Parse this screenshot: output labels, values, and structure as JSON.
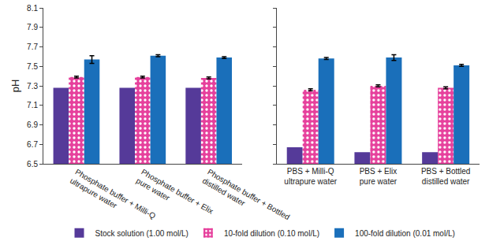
{
  "chart_data": [
    {
      "type": "bar",
      "y_label": "pH",
      "categories": [
        "Phosphate buffer + Milli-Q ultrapure water",
        "Phosphate buffer + Elix pure water",
        "Phosphate buffer + Bottled distilled water"
      ],
      "series": [
        {
          "name": "Stock solution (1.00 mol/L)",
          "color": "#553a99",
          "values": [
            7.28,
            7.28,
            7.28
          ]
        },
        {
          "name": "10-fold dilution (0.10 mol/L)",
          "color": "#e6409c",
          "marker": "dots",
          "values": [
            7.39,
            7.39,
            7.38
          ],
          "errors": [
            0.01,
            0.01,
            0.01
          ]
        },
        {
          "name": "100-fold dilution (0.01 mol/L)",
          "color": "#1a6fba",
          "values": [
            7.57,
            7.61,
            7.59
          ],
          "errors": [
            0.04,
            0.01,
            0.01
          ]
        }
      ],
      "ylim": [
        6.5,
        8.1
      ],
      "yticks": [
        6.5,
        6.7,
        6.9,
        7.1,
        7.3,
        7.5,
        7.7,
        7.9,
        8.1
      ],
      "grid": false,
      "legend": "bottom"
    },
    {
      "type": "bar",
      "categories": [
        "PBS + Milli-Q ultrapure water",
        "PBS + Elix pure water",
        "PBS + Bottled distilled water"
      ],
      "series": [
        {
          "name": "Stock solution (1.00 mol/L)",
          "color": "#553a99",
          "values": [
            6.67,
            6.62,
            6.62
          ]
        },
        {
          "name": "10-fold dilution (0.10 mol/L)",
          "color": "#e6409c",
          "marker": "dots",
          "values": [
            7.26,
            7.3,
            7.28
          ],
          "errors": [
            0.01,
            0.01,
            0.01
          ]
        },
        {
          "name": "100-fold dilution (0.01 mol/L)",
          "color": "#1a6fba",
          "values": [
            7.58,
            7.59,
            7.51
          ],
          "errors": [
            0.01,
            0.03,
            0.01
          ]
        }
      ],
      "ylim": [
        6.5,
        8.1
      ],
      "yticks": [
        6.5,
        6.7,
        6.9,
        7.1,
        7.3,
        7.5,
        7.7,
        7.9,
        8.1
      ],
      "grid": false,
      "tick_labels": "x"
    }
  ]
}
